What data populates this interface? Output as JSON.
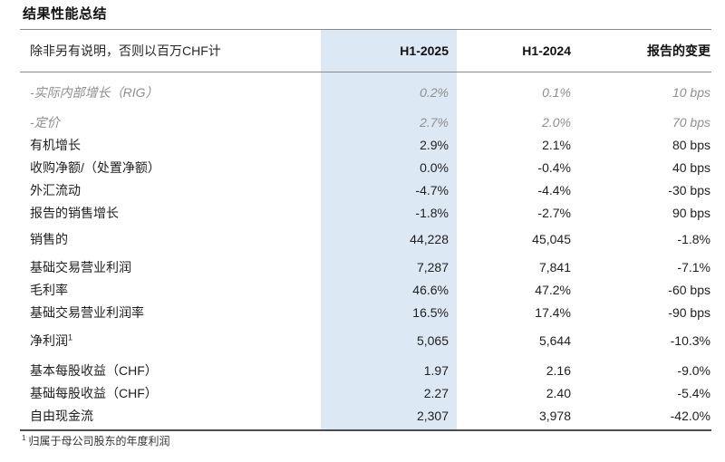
{
  "title": "结果性能总结",
  "table": {
    "unit_note": "除非另有说明，否则以百万CHF计",
    "columns": [
      "H1-2025",
      "H1-2024",
      "报告的变更"
    ],
    "rows": [
      {
        "label": "-实际内部增长（RIG）",
        "h1_2025": "0.2%",
        "h1_2024": "0.1%",
        "change": "10 bps"
      },
      {
        "label": "-定价",
        "h1_2025": "2.7%",
        "h1_2024": "2.0%",
        "change": "70 bps"
      },
      {
        "label": "有机增长",
        "h1_2025": "2.9%",
        "h1_2024": "2.1%",
        "change": "80 bps"
      },
      {
        "label": "收购净额/（处置净额）",
        "h1_2025": "0.0%",
        "h1_2024": "-0.4%",
        "change": "40 bps"
      },
      {
        "label": "外汇流动",
        "h1_2025": "-4.7%",
        "h1_2024": "-4.4%",
        "change": "-30 bps"
      },
      {
        "label": "报告的销售增长",
        "h1_2025": "-1.8%",
        "h1_2024": "-2.7%",
        "change": "90 bps"
      },
      {
        "label": "销售的",
        "h1_2025": "44,228",
        "h1_2024": "45,045",
        "change": "-1.8%"
      },
      {
        "label": "基础交易营业利润",
        "h1_2025": "7,287",
        "h1_2024": "7,841",
        "change": "-7.1%"
      },
      {
        "label": "毛利率",
        "h1_2025": "46.6%",
        "h1_2024": "47.2%",
        "change": "-60 bps"
      },
      {
        "label": "基础交易营业利润率",
        "h1_2025": "16.5%",
        "h1_2024": "17.4%",
        "change": "-90 bps"
      },
      {
        "label": "净利润",
        "sup": "1",
        "h1_2025": "5,065",
        "h1_2024": "5,644",
        "change": "-10.3%"
      },
      {
        "label": "基本每股收益（CHF）",
        "h1_2025": "1.97",
        "h1_2024": "2.16",
        "change": "-9.0%"
      },
      {
        "label": "基础每股收益（CHF）",
        "h1_2025": "2.27",
        "h1_2024": "2.40",
        "change": "-5.4%"
      },
      {
        "label": "自由现金流",
        "h1_2025": "2,307",
        "h1_2024": "3,978",
        "change": "-42.0%"
      }
    ]
  },
  "footnote": {
    "marker": "1",
    "text": "归属于母公司股东的年度利润"
  },
  "colors": {
    "highlight_column": "#dce8f4",
    "rule_gray": "#8a8a8a",
    "rule_bottom": "#4d4d4d",
    "muted_text": "#8f8f8f"
  }
}
